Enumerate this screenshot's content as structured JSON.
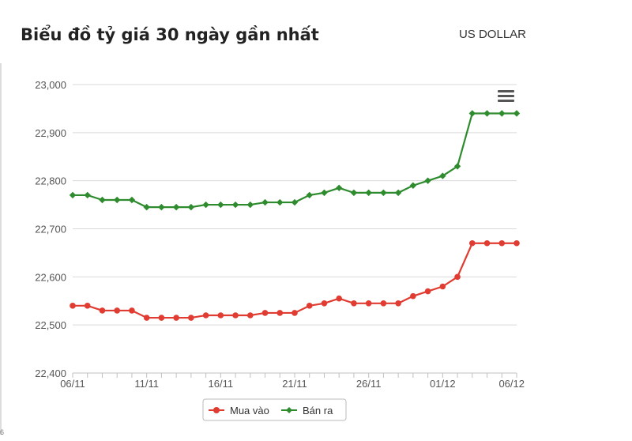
{
  "header": {
    "title": "Biểu đồ tỷ giá 30 ngày gần nhất",
    "currency": "US DOLLAR"
  },
  "colors": {
    "buy": "#e03c31",
    "sell": "#2e8b2e",
    "grid": "#d9d9d9",
    "axis_text": "#555555"
  },
  "icons": {
    "menu": "hamburger-menu-icon"
  },
  "chart_data": {
    "type": "line",
    "x": [
      "06/11",
      "07/11",
      "08/11",
      "09/11",
      "10/11",
      "11/11",
      "12/11",
      "13/11",
      "14/11",
      "15/11",
      "16/11",
      "17/11",
      "18/11",
      "19/11",
      "20/11",
      "21/11",
      "22/11",
      "23/11",
      "24/11",
      "25/11",
      "26/11",
      "27/11",
      "28/11",
      "29/11",
      "30/11",
      "01/12",
      "02/12",
      "03/12",
      "04/12",
      "05/12",
      "06/12"
    ],
    "x_tick_labels": [
      "06/11",
      "11/11",
      "16/11",
      "21/11",
      "26/11",
      "01/12",
      "06/12"
    ],
    "series": [
      {
        "name": "Mua vào",
        "color": "#e03c31",
        "marker": "circle",
        "values": [
          22540,
          22540,
          22530,
          22530,
          22530,
          22515,
          22515,
          22515,
          22515,
          22520,
          22520,
          22520,
          22520,
          22525,
          22525,
          22525,
          22540,
          22545,
          22555,
          22545,
          22545,
          22545,
          22545,
          22560,
          22570,
          22580,
          22600,
          22670,
          22670,
          22670,
          22670
        ]
      },
      {
        "name": "Bán ra",
        "color": "#2e8b2e",
        "marker": "diamond",
        "values": [
          22770,
          22770,
          22760,
          22760,
          22760,
          22745,
          22745,
          22745,
          22745,
          22750,
          22750,
          22750,
          22750,
          22755,
          22755,
          22755,
          22770,
          22775,
          22785,
          22775,
          22775,
          22775,
          22775,
          22790,
          22800,
          22810,
          22830,
          22940,
          22940,
          22940,
          22940
        ]
      }
    ],
    "y_ticks": [
      "22,400",
      "22,500",
      "22,600",
      "22,700",
      "22,800",
      "22,900",
      "23,000"
    ],
    "ylim": [
      22400,
      23000
    ],
    "grid": true,
    "legend_position": "bottom-center"
  }
}
